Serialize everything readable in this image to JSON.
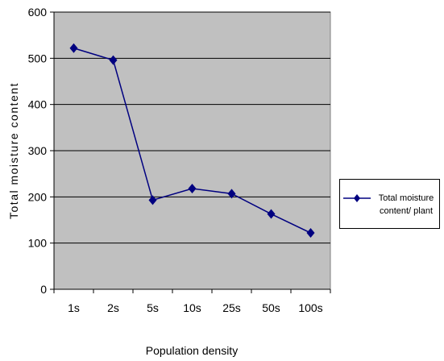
{
  "chart_data": {
    "type": "line",
    "x_label": "Population density",
    "y_label": "Total moisture content",
    "categories": [
      "1s",
      "2s",
      "5s",
      "10s",
      "25s",
      "50s",
      "100s"
    ],
    "series": [
      {
        "name": "Total moisture content/ plant",
        "color": "#000080",
        "values": [
          522,
          496,
          193,
          218,
          207,
          163,
          122
        ]
      }
    ],
    "ylim": [
      0,
      600
    ],
    "yticks": [
      0,
      100,
      200,
      300,
      400,
      500,
      600
    ],
    "grid": true,
    "legend": "right",
    "plot_background": "#c0c0c0"
  }
}
